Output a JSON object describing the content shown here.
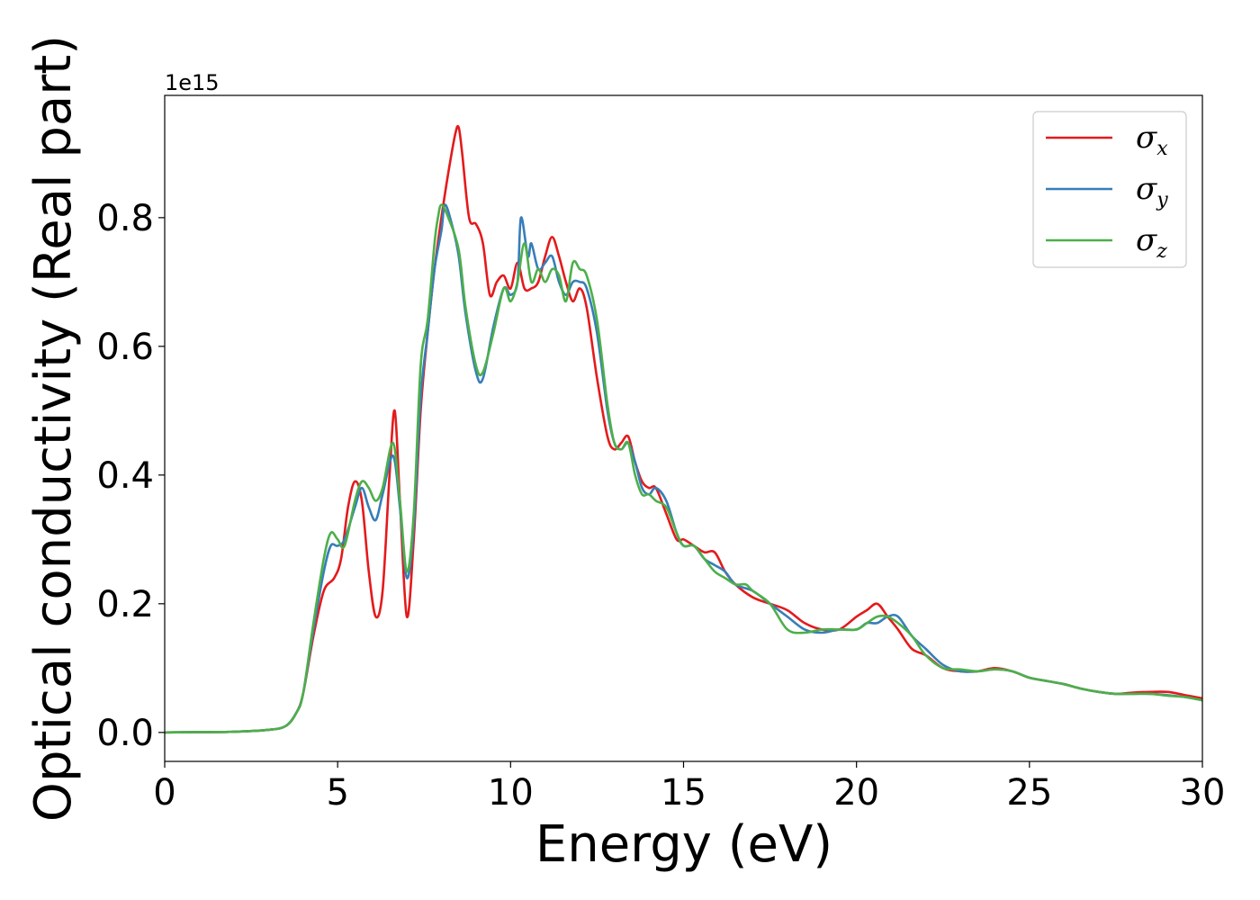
{
  "chart_data": {
    "type": "line",
    "xlabel": "Energy (eV)",
    "ylabel": "Optical conductivity (Real part)",
    "y_offset_label": "1e15",
    "xlim": [
      0,
      30
    ],
    "ylim": [
      -0.045,
      0.99
    ],
    "xticks": [
      0,
      5,
      10,
      15,
      20,
      25,
      30
    ],
    "xtick_labels": [
      "0",
      "5",
      "10",
      "15",
      "20",
      "25",
      "30"
    ],
    "yticks": [
      0.0,
      0.2,
      0.4,
      0.6,
      0.8
    ],
    "ytick_labels": [
      "0.0",
      "0.2",
      "0.4",
      "0.6",
      "0.8"
    ],
    "grid": false,
    "legend_position": "top-right",
    "series": [
      {
        "name": "σx",
        "legend_base": "σ",
        "legend_sub": "x",
        "color": "#e41a1c",
        "x": [
          0,
          1,
          2,
          3,
          3.5,
          3.8,
          4.0,
          4.3,
          4.6,
          4.9,
          5.1,
          5.3,
          5.5,
          5.7,
          5.9,
          6.1,
          6.3,
          6.5,
          6.65,
          6.8,
          7.0,
          7.2,
          7.4,
          7.6,
          7.8,
          8.0,
          8.2,
          8.4,
          8.5,
          8.6,
          8.8,
          9.0,
          9.2,
          9.4,
          9.6,
          9.8,
          10.0,
          10.2,
          10.4,
          10.6,
          10.8,
          11.0,
          11.2,
          11.4,
          11.6,
          11.8,
          12.0,
          12.2,
          12.5,
          12.8,
          13.0,
          13.2,
          13.4,
          13.6,
          13.8,
          14.0,
          14.2,
          14.5,
          14.8,
          15.0,
          15.3,
          15.6,
          15.9,
          16.2,
          16.5,
          17.0,
          17.5,
          18.0,
          18.5,
          19.0,
          19.5,
          20.0,
          20.3,
          20.6,
          20.9,
          21.2,
          21.6,
          22.0,
          22.5,
          23.0,
          23.5,
          24.0,
          24.5,
          25.0,
          25.5,
          26.0,
          26.5,
          27.0,
          27.5,
          28.0,
          28.5,
          29.0,
          29.5,
          30.0
        ],
        "y": [
          0.0,
          0.0005,
          0.001,
          0.004,
          0.01,
          0.03,
          0.06,
          0.15,
          0.22,
          0.24,
          0.27,
          0.35,
          0.39,
          0.36,
          0.25,
          0.18,
          0.22,
          0.4,
          0.5,
          0.36,
          0.18,
          0.3,
          0.5,
          0.62,
          0.72,
          0.8,
          0.87,
          0.93,
          0.94,
          0.9,
          0.8,
          0.79,
          0.76,
          0.68,
          0.7,
          0.71,
          0.69,
          0.73,
          0.69,
          0.69,
          0.7,
          0.74,
          0.77,
          0.74,
          0.7,
          0.67,
          0.69,
          0.66,
          0.55,
          0.46,
          0.44,
          0.45,
          0.46,
          0.42,
          0.39,
          0.38,
          0.38,
          0.34,
          0.3,
          0.3,
          0.29,
          0.28,
          0.28,
          0.25,
          0.23,
          0.21,
          0.2,
          0.19,
          0.17,
          0.16,
          0.16,
          0.18,
          0.19,
          0.2,
          0.18,
          0.16,
          0.13,
          0.12,
          0.1,
          0.095,
          0.095,
          0.1,
          0.095,
          0.085,
          0.08,
          0.075,
          0.068,
          0.063,
          0.06,
          0.062,
          0.063,
          0.063,
          0.058,
          0.053
        ]
      },
      {
        "name": "σy",
        "legend_base": "σ",
        "legend_sub": "y",
        "color": "#377eb8",
        "x": [
          0,
          1,
          2,
          3,
          3.5,
          3.8,
          4.0,
          4.3,
          4.6,
          4.8,
          5.0,
          5.2,
          5.5,
          5.7,
          5.9,
          6.1,
          6.3,
          6.6,
          6.8,
          7.0,
          7.2,
          7.4,
          7.6,
          7.8,
          8.0,
          8.1,
          8.3,
          8.5,
          8.7,
          9.0,
          9.2,
          9.5,
          9.8,
          10.0,
          10.2,
          10.3,
          10.5,
          10.6,
          10.8,
          11.0,
          11.2,
          11.4,
          11.6,
          11.8,
          12.0,
          12.2,
          12.5,
          12.8,
          13.0,
          13.2,
          13.4,
          13.6,
          13.8,
          14.0,
          14.2,
          14.5,
          14.8,
          15.0,
          15.3,
          15.6,
          15.9,
          16.2,
          16.5,
          17.0,
          17.5,
          18.0,
          18.5,
          19.0,
          19.5,
          20.0,
          20.3,
          20.6,
          20.9,
          21.2,
          21.6,
          22.0,
          22.5,
          23.0,
          23.5,
          24.0,
          24.5,
          25.0,
          25.5,
          26.0,
          26.5,
          27.0,
          27.5,
          28.0,
          28.5,
          29.0,
          29.5,
          30.0
        ],
        "y": [
          0.0,
          0.0005,
          0.001,
          0.004,
          0.01,
          0.03,
          0.06,
          0.16,
          0.25,
          0.29,
          0.29,
          0.3,
          0.35,
          0.38,
          0.35,
          0.33,
          0.37,
          0.43,
          0.35,
          0.24,
          0.32,
          0.52,
          0.62,
          0.72,
          0.78,
          0.82,
          0.79,
          0.74,
          0.65,
          0.56,
          0.55,
          0.63,
          0.69,
          0.68,
          0.7,
          0.8,
          0.74,
          0.76,
          0.72,
          0.73,
          0.74,
          0.7,
          0.68,
          0.7,
          0.7,
          0.69,
          0.62,
          0.5,
          0.45,
          0.44,
          0.45,
          0.42,
          0.38,
          0.37,
          0.38,
          0.36,
          0.31,
          0.29,
          0.29,
          0.27,
          0.26,
          0.25,
          0.23,
          0.22,
          0.2,
          0.18,
          0.16,
          0.155,
          0.16,
          0.16,
          0.17,
          0.17,
          0.18,
          0.18,
          0.15,
          0.13,
          0.105,
          0.095,
          0.095,
          0.098,
          0.095,
          0.085,
          0.08,
          0.075,
          0.068,
          0.063,
          0.06,
          0.06,
          0.06,
          0.058,
          0.055,
          0.05
        ]
      },
      {
        "name": "σz",
        "legend_base": "σ",
        "legend_sub": "z",
        "color": "#4daf4a",
        "x": [
          0,
          1,
          2,
          3,
          3.5,
          3.8,
          4.0,
          4.3,
          4.6,
          4.8,
          5.0,
          5.2,
          5.5,
          5.7,
          5.9,
          6.1,
          6.3,
          6.6,
          6.8,
          7.0,
          7.2,
          7.4,
          7.6,
          7.8,
          7.9,
          8.0,
          8.2,
          8.5,
          8.7,
          9.0,
          9.2,
          9.5,
          9.8,
          10.0,
          10.2,
          10.4,
          10.6,
          10.8,
          11.0,
          11.2,
          11.4,
          11.6,
          11.8,
          12.0,
          12.2,
          12.5,
          12.8,
          13.0,
          13.2,
          13.4,
          13.6,
          13.8,
          14.0,
          14.2,
          14.5,
          14.8,
          15.0,
          15.3,
          15.6,
          15.9,
          16.2,
          16.5,
          16.8,
          17.0,
          17.5,
          18.0,
          18.5,
          19.0,
          19.5,
          20.0,
          20.3,
          20.6,
          20.9,
          21.2,
          21.6,
          22.0,
          22.5,
          23.0,
          23.5,
          24.0,
          24.5,
          25.0,
          25.5,
          26.0,
          26.5,
          27.0,
          27.5,
          28.0,
          28.5,
          29.0,
          29.5,
          30.0
        ],
        "y": [
          0.0,
          0.0005,
          0.001,
          0.004,
          0.01,
          0.03,
          0.06,
          0.17,
          0.27,
          0.31,
          0.3,
          0.29,
          0.36,
          0.39,
          0.38,
          0.36,
          0.38,
          0.45,
          0.36,
          0.25,
          0.34,
          0.57,
          0.64,
          0.76,
          0.8,
          0.82,
          0.8,
          0.75,
          0.66,
          0.57,
          0.56,
          0.62,
          0.69,
          0.67,
          0.7,
          0.76,
          0.7,
          0.72,
          0.7,
          0.72,
          0.71,
          0.67,
          0.73,
          0.72,
          0.71,
          0.64,
          0.51,
          0.45,
          0.44,
          0.45,
          0.4,
          0.37,
          0.37,
          0.36,
          0.35,
          0.31,
          0.29,
          0.29,
          0.27,
          0.25,
          0.24,
          0.23,
          0.23,
          0.22,
          0.2,
          0.16,
          0.155,
          0.16,
          0.16,
          0.16,
          0.17,
          0.18,
          0.18,
          0.17,
          0.15,
          0.12,
          0.1,
          0.098,
          0.095,
          0.098,
          0.095,
          0.085,
          0.08,
          0.075,
          0.068,
          0.063,
          0.06,
          0.06,
          0.06,
          0.057,
          0.055,
          0.05
        ]
      }
    ]
  }
}
